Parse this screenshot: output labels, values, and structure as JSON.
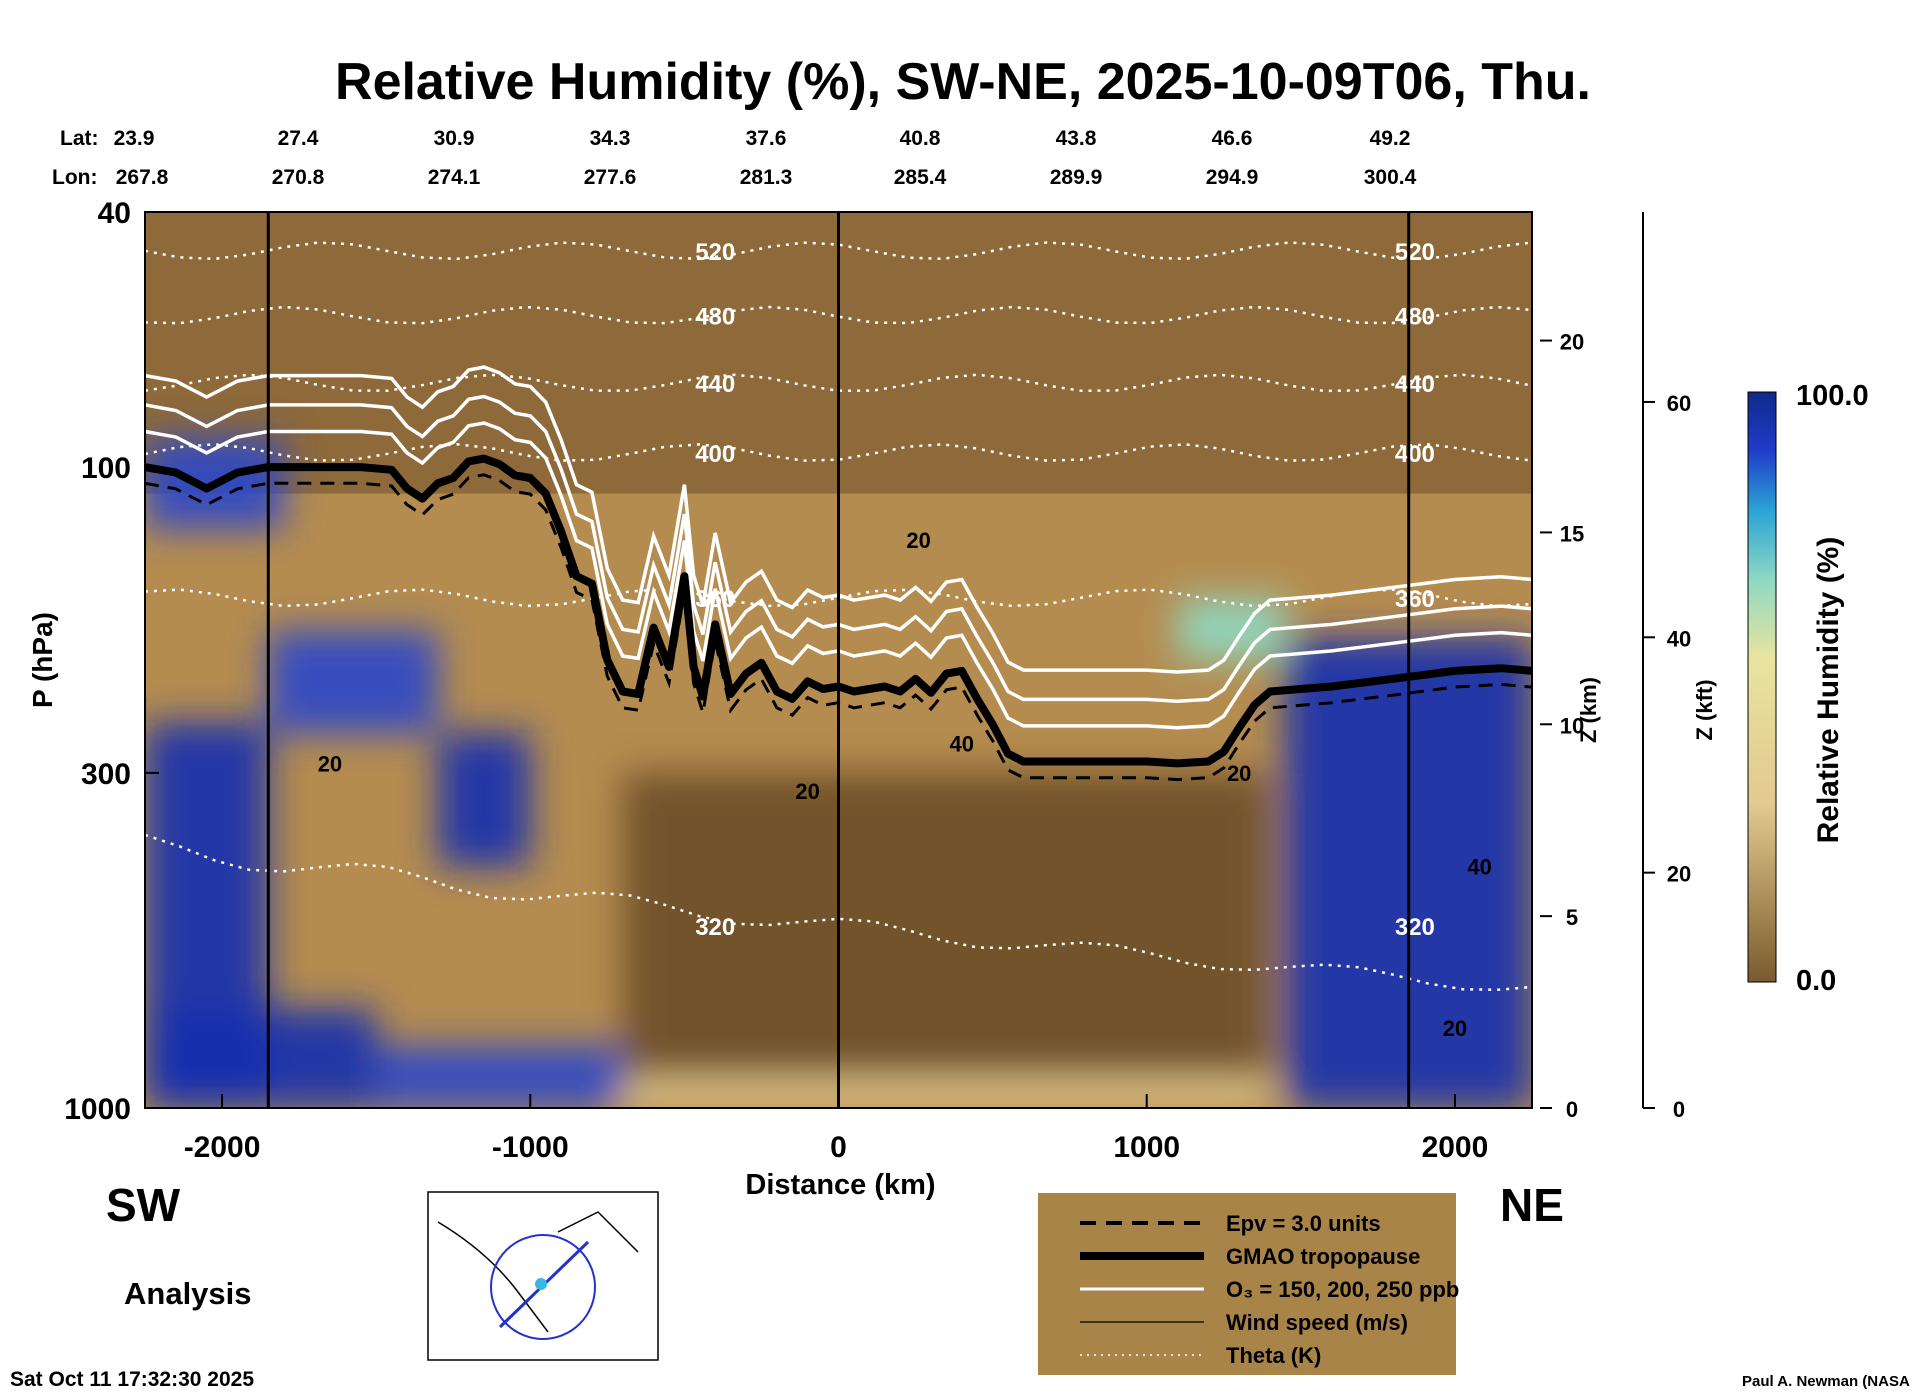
{
  "title": "Relative Humidity (%), SW-NE, 2025-10-09T06, Thu.",
  "lat_row": {
    "label": "Lat:",
    "values": [
      "23.9",
      "27.4",
      "30.9",
      "34.3",
      "37.6",
      "40.8",
      "43.8",
      "46.6",
      "49.2"
    ]
  },
  "lon_row": {
    "label": "Lon:",
    "values": [
      "267.8",
      "270.8",
      "274.1",
      "277.6",
      "281.3",
      "285.4",
      "289.9",
      "294.9",
      "300.4"
    ]
  },
  "direction_left": "SW",
  "direction_right": "NE",
  "analysis_label": "Analysis",
  "timestamp": "Sat Oct 11 17:32:30 2025",
  "credit": "Paul A. Newman (NASA",
  "colors": {
    "dry": "#7a5a2e",
    "mid": "#e3c98d",
    "moist": "#8fd9c2",
    "wet": "#1a2fae",
    "legend_bg": "#a98448",
    "white": "#ffffff"
  },
  "chart_data": {
    "type": "heatmap",
    "xlabel": "Distance (km)",
    "ylabel": "P (hPa)",
    "y2label": "Z (km)",
    "y3label": "Z (kft)",
    "colorbar_label": "Relative Humidity (%)",
    "colorbar_ticks": [
      "100.0",
      "0.0"
    ],
    "xlim": [
      -2250,
      2250
    ],
    "ylim": [
      1000,
      40
    ],
    "y_scale": "log",
    "x_ticks": [
      -2000,
      -1000,
      0,
      1000,
      2000
    ],
    "x_tick_labels": [
      "-2000",
      "-1000",
      "0",
      "1000",
      "2000"
    ],
    "y_ticks": [
      40,
      100,
      300,
      1000
    ],
    "y_tick_labels": [
      "40",
      "100",
      "300",
      "1000"
    ],
    "z_km_ticks": [
      0,
      5,
      10,
      15,
      20
    ],
    "z_km_labels": [
      "0",
      "5",
      "10",
      "15",
      "20"
    ],
    "z_kft_ticks": [
      0,
      20,
      40,
      60
    ],
    "z_kft_labels": [
      "0",
      "20",
      "40",
      "60"
    ],
    "vertical_lines_km": [
      -1850,
      0,
      1850
    ],
    "tropopause": {
      "x": [
        -2250,
        -2150,
        -2050,
        -1950,
        -1850,
        -1750,
        -1650,
        -1550,
        -1450,
        -1400,
        -1350,
        -1300,
        -1250,
        -1200,
        -1150,
        -1100,
        -1050,
        -1000,
        -950,
        -900,
        -850,
        -800,
        -750,
        -700,
        -650,
        -600,
        -550,
        -500,
        -470,
        -440,
        -400,
        -350,
        -300,
        -250,
        -200,
        -150,
        -100,
        -50,
        0,
        50,
        100,
        150,
        200,
        250,
        300,
        350,
        400,
        450,
        500,
        550,
        600,
        700,
        800,
        900,
        1000,
        1100,
        1200,
        1250,
        1300,
        1350,
        1400,
        1500,
        1600,
        1800,
        2000,
        2150,
        2250
      ],
      "p": [
        100,
        102,
        108,
        102,
        100,
        100,
        100,
        100,
        101,
        108,
        112,
        106,
        104,
        98,
        97,
        99,
        103,
        104,
        110,
        126,
        148,
        152,
        200,
        224,
        226,
        178,
        205,
        148,
        205,
        228,
        176,
        226,
        210,
        202,
        224,
        230,
        216,
        222,
        220,
        224,
        222,
        220,
        224,
        214,
        225,
        210,
        208,
        230,
        252,
        280,
        288,
        288,
        288,
        288,
        288,
        290,
        288,
        278,
        255,
        235,
        224,
        222,
        220,
        214,
        208,
        206,
        208
      ]
    },
    "theta_isentropes": [
      {
        "label": "520",
        "p": 46
      },
      {
        "label": "480",
        "p": 58
      },
      {
        "label": "440",
        "p": 74
      },
      {
        "label": "400",
        "p": 95
      },
      {
        "label": "360",
        "p": 160
      },
      {
        "label": "320",
        "p": 520
      }
    ],
    "rh_field": [
      [
        -2250,
        -1850,
        250,
        1000,
        100
      ],
      [
        -1300,
        -1000,
        260,
        420,
        100
      ],
      [
        -1850,
        -1300,
        180,
        260,
        90
      ],
      [
        -2250,
        -1500,
        700,
        1000,
        95
      ],
      [
        -1500,
        -700,
        800,
        1000,
        85
      ],
      [
        1450,
        2250,
        185,
        1000,
        100
      ],
      [
        1100,
        1450,
        160,
        200,
        60
      ],
      [
        -700,
        1400,
        300,
        900,
        5
      ],
      [
        -700,
        1400,
        900,
        1000,
        30
      ],
      [
        -2250,
        -1800,
        90,
        125,
        90
      ]
    ],
    "legend": [
      {
        "label": "Epv = 3.0 units",
        "style": "dashed"
      },
      {
        "label": "GMAO tropopause",
        "style": "thick"
      },
      {
        "label": "O₃ = 150, 200, 250 ppb",
        "style": "white"
      },
      {
        "label": "Wind speed (m/s)",
        "style": "thin"
      },
      {
        "label": "Theta (K)",
        "style": "dotted"
      }
    ],
    "wind_labels": [
      {
        "label": "20",
        "x": -1650,
        "p": 290
      },
      {
        "label": "20",
        "x": 260,
        "p": 130
      },
      {
        "label": "20",
        "x": -100,
        "p": 320
      },
      {
        "label": "40",
        "x": 400,
        "p": 270
      },
      {
        "label": "20",
        "x": 1300,
        "p": 300
      },
      {
        "label": "40",
        "x": 2080,
        "p": 420
      },
      {
        "label": "20",
        "x": 2000,
        "p": 750
      }
    ]
  }
}
